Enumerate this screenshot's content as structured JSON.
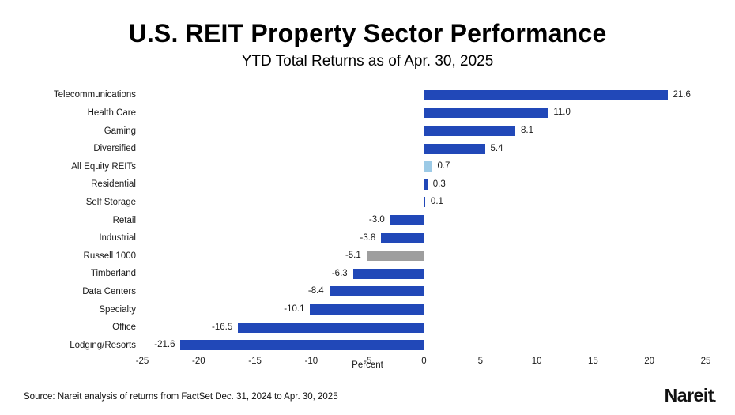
{
  "header": {
    "title": "U.S. REIT Property Sector Performance",
    "subtitle": "YTD Total Returns as of Apr. 30, 2025"
  },
  "chart_data": {
    "type": "bar",
    "orientation": "horizontal",
    "title": "U.S. REIT Property Sector Performance",
    "subtitle": "YTD Total Returns as of Apr. 30, 2025",
    "categories": [
      "Telecommunications",
      "Health Care",
      "Gaming",
      "Diversified",
      "All Equity REITs",
      "Residential",
      "Self Storage",
      "Retail",
      "Industrial",
      "Russell 1000",
      "Timberland",
      "Data Centers",
      "Specialty",
      "Office",
      "Lodging/Resorts"
    ],
    "values": [
      21.6,
      11.0,
      8.1,
      5.4,
      0.7,
      0.3,
      0.1,
      -3.0,
      -3.8,
      -5.1,
      -6.3,
      -8.4,
      -10.1,
      -16.5,
      -21.6
    ],
    "value_labels": [
      "21.6",
      "11.0",
      "8.1",
      "5.4",
      "0.7",
      "0.3",
      "0.1",
      "-3.0",
      "-3.8",
      "-5.1",
      "-6.3",
      "-8.4",
      "-10.1",
      "-16.5",
      "-21.6"
    ],
    "bar_colors": [
      "#2148b8",
      "#2148b8",
      "#2148b8",
      "#2148b8",
      "#9ccae6",
      "#2148b8",
      "#2148b8",
      "#2148b8",
      "#2148b8",
      "#9e9e9e",
      "#2148b8",
      "#2148b8",
      "#2148b8",
      "#2148b8",
      "#2148b8"
    ],
    "xlabel": "Percent",
    "xlim": [
      -25,
      25
    ],
    "xticks": [
      -25,
      -20,
      -15,
      -10,
      -5,
      0,
      5,
      10,
      15,
      20,
      25
    ],
    "xtick_labels": [
      "-25",
      "-20",
      "-15",
      "-10",
      "-5",
      "0",
      "5",
      "10",
      "15",
      "20",
      "25"
    ],
    "grid": false,
    "legend": "none",
    "zero_line_color": "#d8d8d8",
    "accent_blue": "#2148b8",
    "highlight_light_blue": "#9ccae6",
    "highlight_gray": "#9e9e9e"
  },
  "footer": {
    "source": "Source: Nareit analysis of returns from FactSet Dec. 31, 2024 to Apr. 30, 2025",
    "logo_text": "Nareit",
    "logo_dot": "."
  }
}
